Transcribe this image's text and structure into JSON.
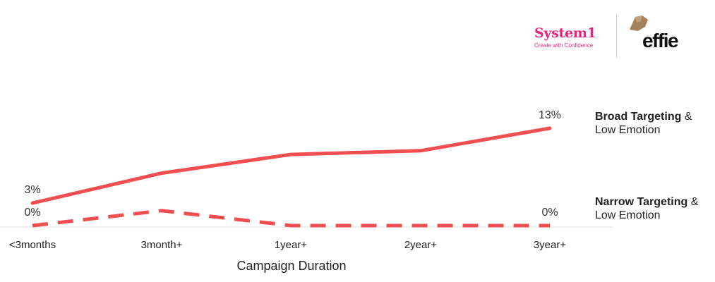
{
  "logos": {
    "system1_name": "System1",
    "system1_tagline": "Create with Confidence",
    "effie_name": "effie"
  },
  "legend": {
    "broad_bold": "Broad Targeting",
    "broad_amp": " &",
    "broad_sub": "Low Emotion",
    "narrow_bold": "Narrow Targeting",
    "narrow_amp": " &",
    "narrow_sub": "Low Emotion"
  },
  "chart_data": {
    "type": "line",
    "categories": [
      "<3months",
      "3month+",
      "1year+",
      "2year+",
      "3year+"
    ],
    "xlabel": "Campaign Duration",
    "ylabel": "",
    "ylim": [
      0,
      16
    ],
    "grid": false,
    "legend_placement": "right",
    "series": [
      {
        "name": "Broad Targeting & Low Emotion",
        "values": [
          3,
          7,
          9.5,
          10,
          13
        ],
        "style": "solid",
        "color": "#f04e50",
        "labels": [
          "3%",
          "",
          "",
          "",
          "13%"
        ]
      },
      {
        "name": "Narrow Targeting & Low Emotion",
        "values": [
          0,
          2,
          0,
          0,
          0
        ],
        "style": "dashed",
        "color": "#f04e50",
        "labels": [
          "0%",
          "",
          "",
          "",
          "0%"
        ]
      }
    ]
  }
}
